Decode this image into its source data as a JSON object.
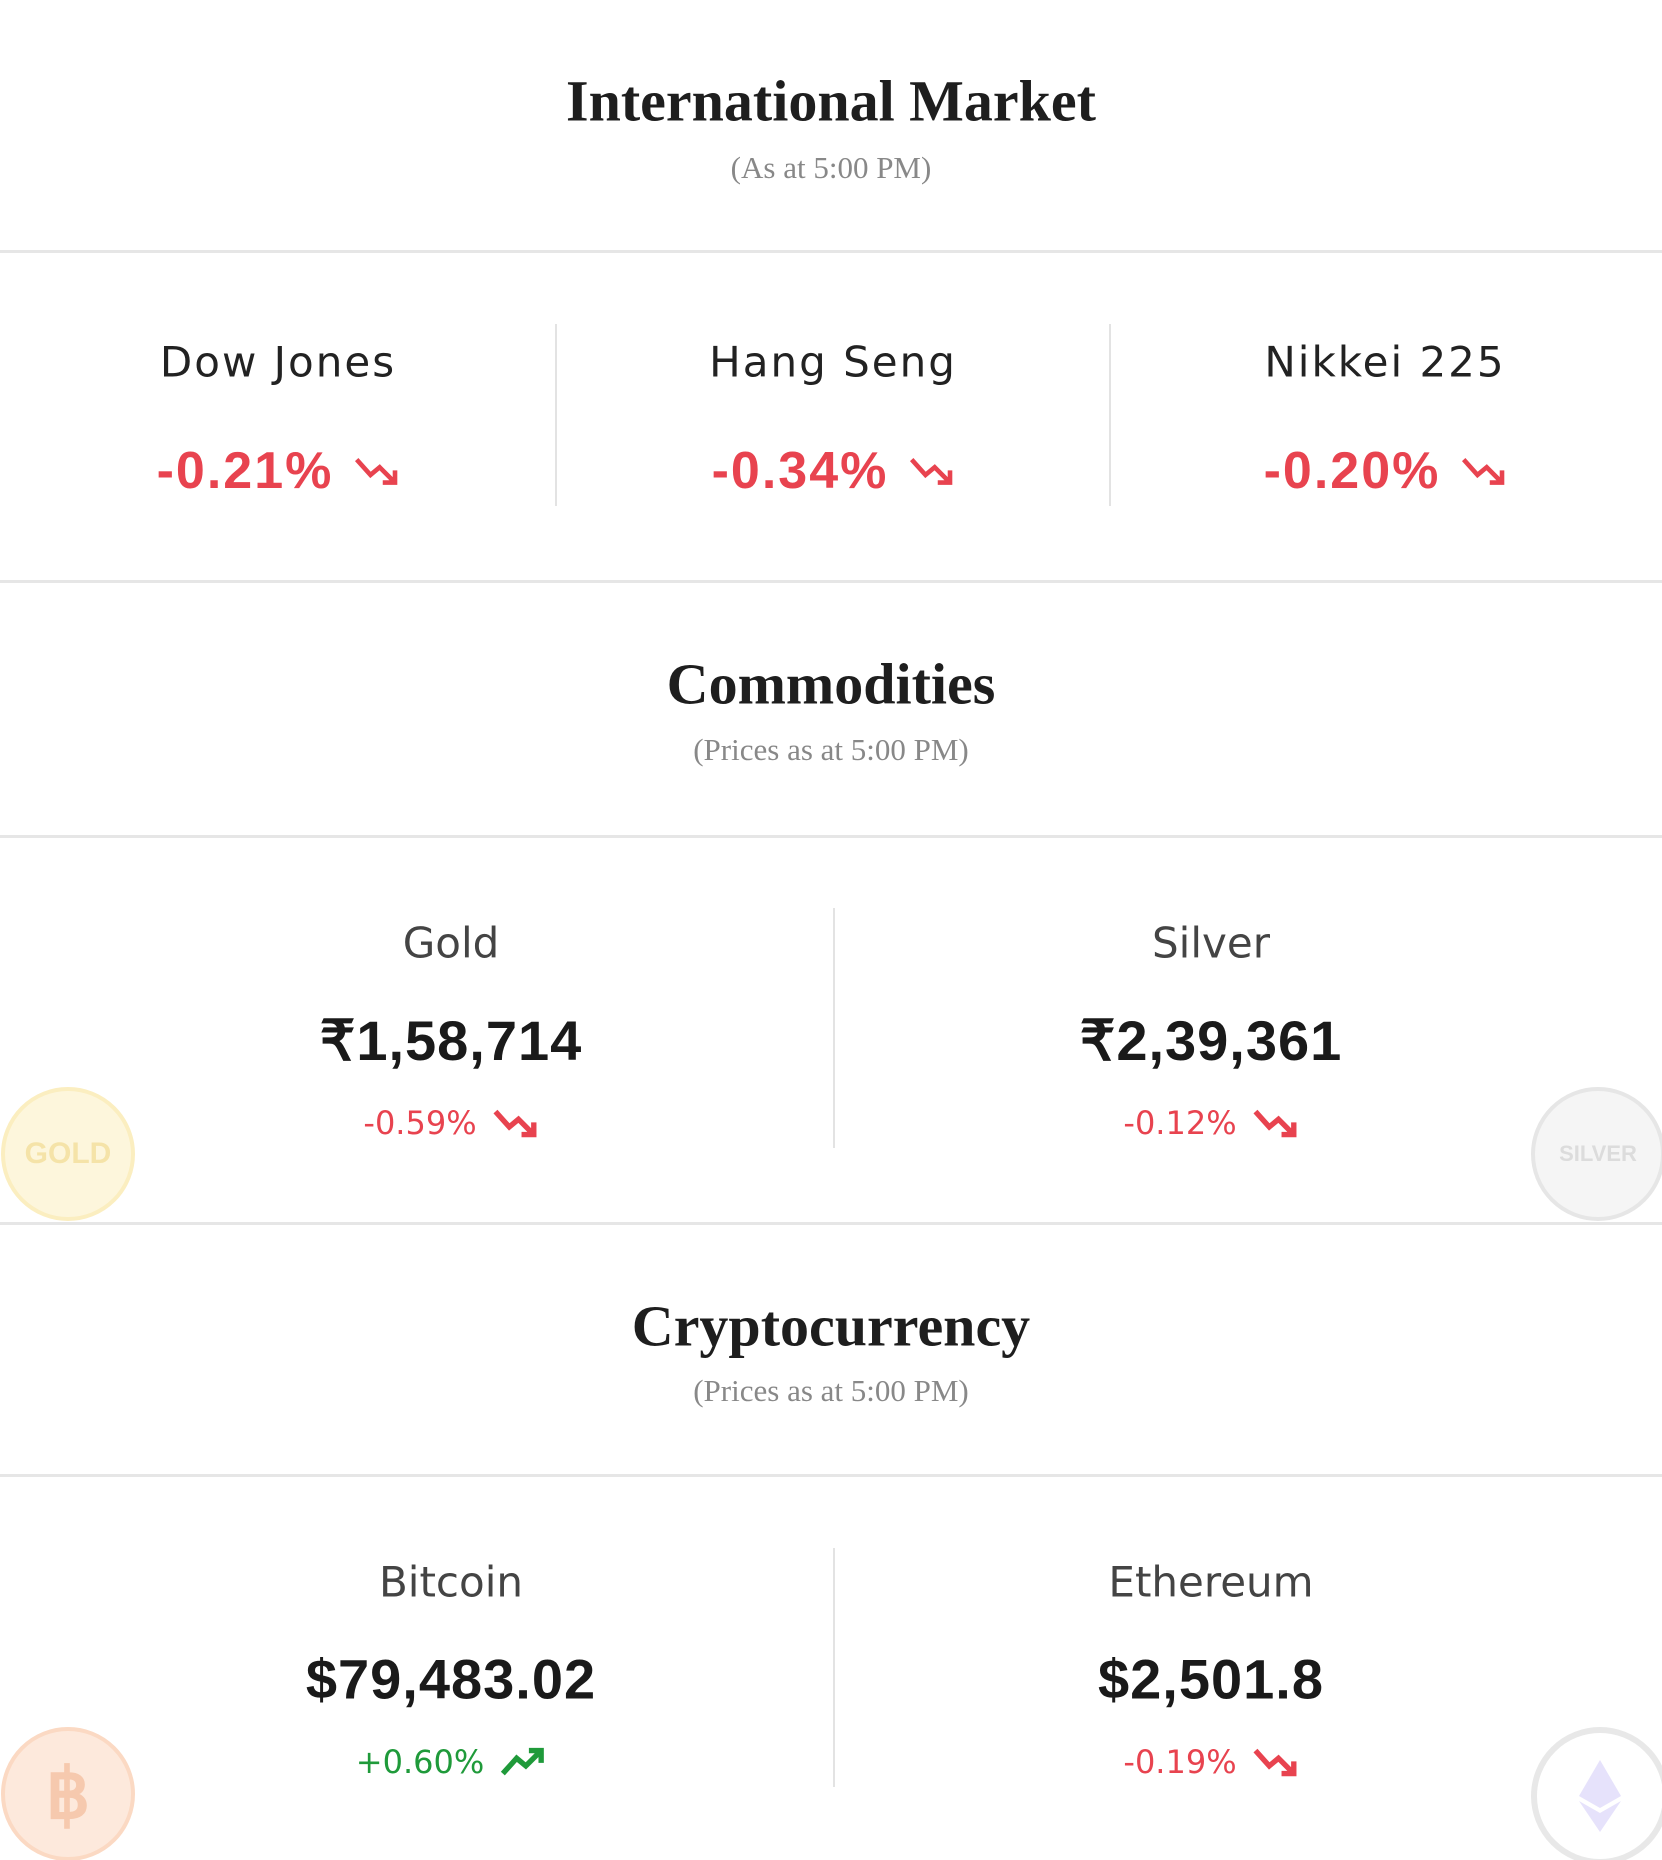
{
  "sections": [
    {
      "title": "International Market",
      "subtitle": "(As at 5:00 PM)",
      "layout": "index",
      "items": [
        {
          "name": "Dow Jones",
          "change": "-0.21%",
          "direction": "down"
        },
        {
          "name": "Hang Seng",
          "change": "-0.34%",
          "direction": "down"
        },
        {
          "name": "Nikkei 225",
          "change": "-0.20%",
          "direction": "down"
        }
      ]
    },
    {
      "title": "Commodities",
      "subtitle": "(Prices as at 5:00 PM)",
      "layout": "price",
      "items": [
        {
          "name": "Gold",
          "price": "₹1,58,714",
          "change": "-0.59%",
          "direction": "down",
          "coin_label": "GOLD"
        },
        {
          "name": "Silver",
          "price": "₹2,39,361",
          "change": "-0.12%",
          "direction": "down",
          "coin_label": "SILVER"
        }
      ]
    },
    {
      "title": "Cryptocurrency",
      "subtitle": "(Prices as at 5:00 PM)",
      "layout": "price",
      "items": [
        {
          "name": "Bitcoin",
          "price": "$79,483.02",
          "change": "+0.60%",
          "direction": "up"
        },
        {
          "name": "Ethereum",
          "price": "$2,501.8",
          "change": "-0.19%",
          "direction": "down"
        }
      ]
    }
  ]
}
